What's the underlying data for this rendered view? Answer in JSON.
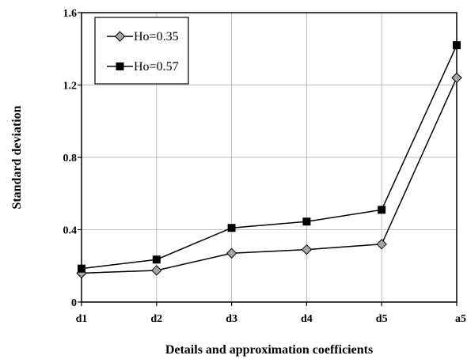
{
  "chart_data": {
    "type": "line",
    "categories": [
      "d1",
      "d2",
      "d3",
      "d4",
      "d5",
      "a5"
    ],
    "series": [
      {
        "name": "Ho=0.35",
        "marker": "diamond",
        "values": [
          0.16,
          0.175,
          0.27,
          0.29,
          0.32,
          1.24
        ]
      },
      {
        "name": "Ho=0.57",
        "marker": "square",
        "values": [
          0.185,
          0.235,
          0.41,
          0.445,
          0.51,
          1.42
        ]
      }
    ],
    "xlabel": "Details and approximation coefficients",
    "ylabel": "Standard deviation",
    "ylim": [
      0,
      1.6
    ],
    "yticks": [
      "0",
      "0.4",
      "0.8",
      "1.2",
      "1.6"
    ],
    "grid": true,
    "legend": "top-left"
  }
}
